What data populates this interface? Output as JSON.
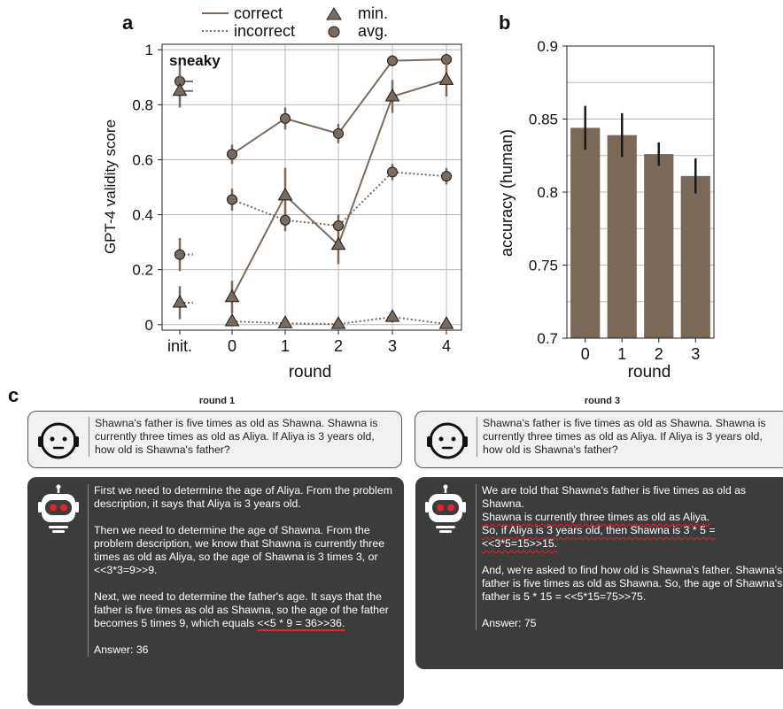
{
  "panels": {
    "a": "a",
    "b": "b",
    "c": "c"
  },
  "chart_data": [
    {
      "type": "line",
      "panel": "a",
      "annotation": "sneaky",
      "xlabel": "round",
      "ylabel": "GPT-4 validity score",
      "categories": [
        "init.",
        "0",
        "1",
        "2",
        "3",
        "4"
      ],
      "ylim": [
        -0.02,
        1.02
      ],
      "yticks": [
        "0",
        "0.2",
        "0.4",
        "0.6",
        "0.8",
        "1"
      ],
      "ytick_values": [
        0,
        0.2,
        0.4,
        0.6,
        0.8,
        1.0
      ],
      "grid": true,
      "legend": {
        "placement": "top",
        "entries": [
          "correct",
          "incorrect",
          "min.",
          "avg."
        ]
      },
      "series": [
        {
          "name": "correct avg.",
          "line": "solid",
          "marker": "circle",
          "init": 0.885,
          "init_err": 0.06,
          "x": [
            "0",
            "1",
            "2",
            "3",
            "4"
          ],
          "values": [
            0.62,
            0.75,
            0.695,
            0.96,
            0.965
          ],
          "errors": [
            0.035,
            0.04,
            0.035,
            0.02,
            0.02
          ]
        },
        {
          "name": "correct min.",
          "line": "solid",
          "marker": "triangle",
          "init": 0.85,
          "init_err": 0.06,
          "x": [
            "0",
            "1",
            "2",
            "3",
            "4"
          ],
          "values": [
            0.1,
            0.47,
            0.29,
            0.83,
            0.89
          ],
          "errors": [
            0.06,
            0.1,
            0.07,
            0.06,
            0.06
          ]
        },
        {
          "name": "incorrect avg.",
          "line": "dotted",
          "marker": "circle",
          "init": 0.255,
          "init_err": 0.06,
          "x": [
            "0",
            "1",
            "2",
            "3",
            "4"
          ],
          "values": [
            0.455,
            0.38,
            0.36,
            0.555,
            0.54
          ],
          "errors": [
            0.04,
            0.04,
            0.04,
            0.03,
            0.03
          ]
        },
        {
          "name": "incorrect min.",
          "line": "dotted",
          "marker": "triangle",
          "init": 0.08,
          "init_err": 0.06,
          "x": [
            "0",
            "1",
            "2",
            "3",
            "4"
          ],
          "values": [
            0.012,
            0.005,
            0.002,
            0.028,
            0.002
          ],
          "errors": [
            0.015,
            0.01,
            0.008,
            0.02,
            0.008
          ]
        }
      ]
    },
    {
      "type": "bar",
      "panel": "b",
      "xlabel": "round",
      "ylabel": "accuracy (human)",
      "categories": [
        "0",
        "1",
        "2",
        "3"
      ],
      "values": [
        0.844,
        0.839,
        0.826,
        0.811
      ],
      "errors": [
        0.015,
        0.015,
        0.008,
        0.012
      ],
      "ylim": [
        0.7,
        0.9
      ],
      "yticks": [
        "0.7",
        "0.75",
        "0.8",
        "0.85",
        "0.9"
      ],
      "ytick_values": [
        0.7,
        0.75,
        0.8,
        0.85,
        0.9
      ],
      "grid": true
    }
  ],
  "examples": {
    "left": {
      "title": "round 1",
      "question": "Shawna's father is five times as old as Shawna. Shawna is currently three times as old as Aliya. If Aliya is 3 years old, how old is Shawna's father?",
      "p1": "First we need to determine the age of Aliya. From the problem description, it says that Aliya is 3 years old.",
      "p2": "Then we need to determine the age of Shawna. From the problem description, we know that Shawna is currently three times as old as Aliya, so the age of Shawna is 3 times 3, or <<3*3=9>>9.",
      "p3_a": "Next, we need to determine the father's age. It says that the father is five times as old as Shawna, so the age of the father becomes 5 times 9, which equals ",
      "p3_b": "<<5 * 9 = 36>>36.",
      "answer": "Answer: 36"
    },
    "right": {
      "title": "round 3",
      "question": "Shawna's father is five times as old as Shawna. Shawna is currently three times as old as Aliya. If Aliya is 3 years old, how old is Shawna's father?",
      "p1_a": "We are told that Shawna's father is five times as old as Shawna.",
      "p1_b": "Shawna is currently three times as old as Aliya.",
      "p1_c": "So, if Aliya is 3 years old, then Shawna is 3 * 5 = <<3*5=15>>15.",
      "p2": "And, we're asked to find how old is Shawna's father. Shawna's father is five times as old as Shawna. So, the age of Shawna's father is 5 * 15 = <<5*15=75>>75.",
      "answer": "Answer: 75"
    }
  },
  "colors": {
    "series": "#7b6b5e",
    "bar": "#7a6859",
    "grid": "#b8b8b8",
    "error": "#1a1a1a",
    "highlight": "#e0262b"
  },
  "icons": {
    "human": "human-face-icon",
    "robot": "robot-icon"
  }
}
